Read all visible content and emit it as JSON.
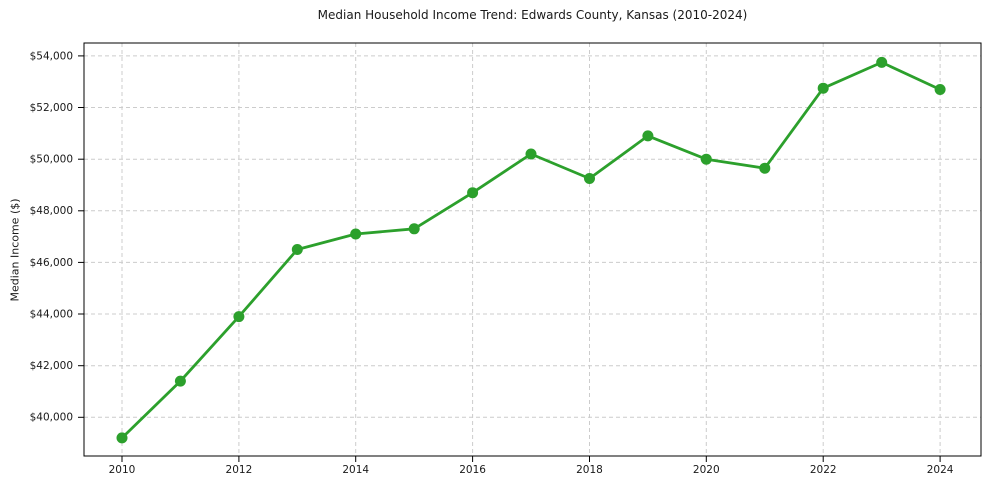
{
  "figure": {
    "background": "#ffffff"
  },
  "chart_data": {
    "type": "line",
    "title": "Median Household Income Trend: Edwards County, Kansas (2010-2024)",
    "xlabel": "",
    "ylabel": "Median Income ($)",
    "x": [
      2010,
      2011,
      2012,
      2013,
      2014,
      2015,
      2016,
      2017,
      2018,
      2019,
      2020,
      2021,
      2022,
      2023,
      2024
    ],
    "values": [
      39200,
      41400,
      43900,
      46500,
      47100,
      47300,
      48700,
      50200,
      49250,
      50900,
      50000,
      49650,
      52750,
      53750,
      52700
    ],
    "line_color": "#2ca02c",
    "marker": "circle",
    "x_ticks": [
      2010,
      2012,
      2014,
      2016,
      2018,
      2020,
      2022,
      2024
    ],
    "x_tick_labels": [
      "2010",
      "2012",
      "2014",
      "2016",
      "2018",
      "2020",
      "2022",
      "2024"
    ],
    "y_ticks": [
      40000,
      42000,
      44000,
      46000,
      48000,
      50000,
      52000,
      54000
    ],
    "y_tick_labels": [
      "$40,000",
      "$42,000",
      "$44,000",
      "$46,000",
      "$48,000",
      "$50,000",
      "$52,000",
      "$54,000"
    ],
    "xlim": [
      2009.35,
      2024.7
    ],
    "ylim": [
      38500,
      54500
    ],
    "grid": true,
    "grid_style": "dashed",
    "grid_color": "#cccccc",
    "legend": "none",
    "text_color": "#1a1a1a"
  }
}
